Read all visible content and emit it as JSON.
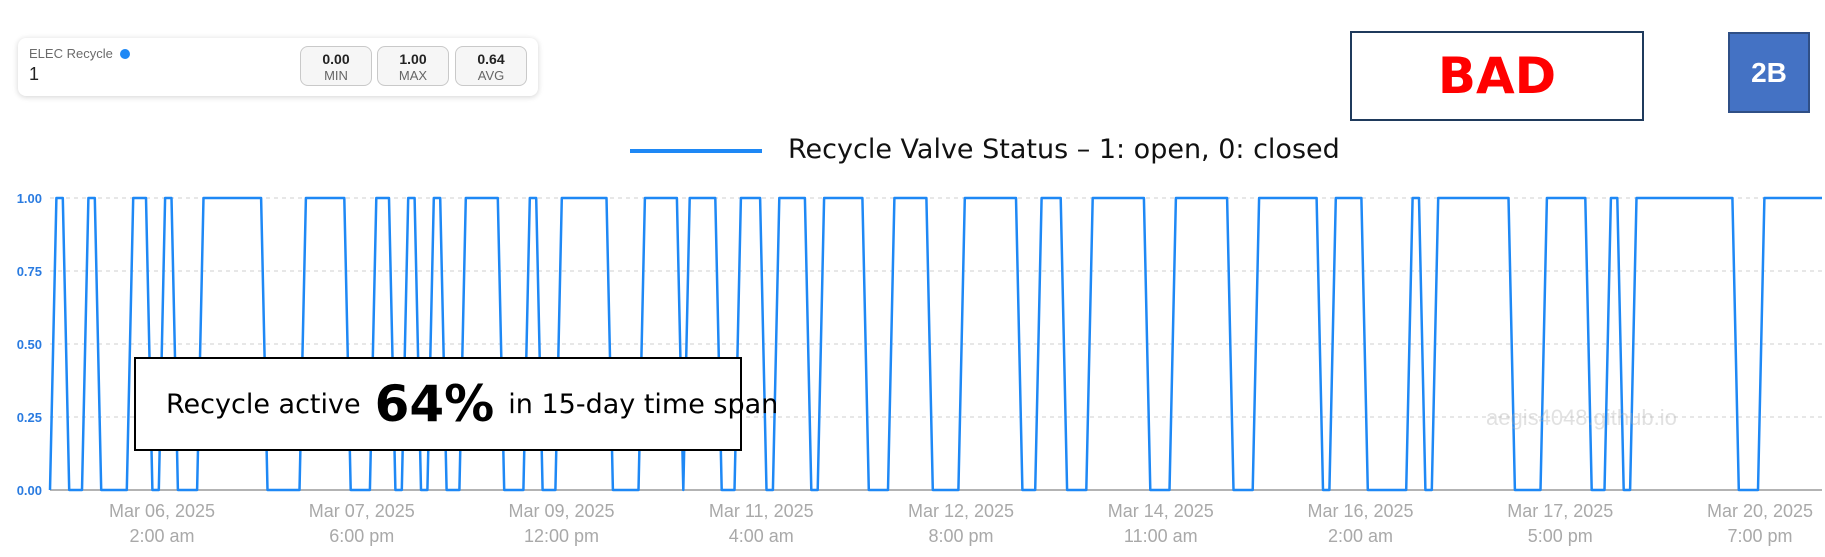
{
  "stats": {
    "title": "ELEC Recycle",
    "current": "1",
    "min_value": "0.00",
    "min_label": "MIN",
    "max_value": "1.00",
    "max_label": "MAX",
    "avg_value": "0.64",
    "avg_label": "AVG",
    "dot_color": "#1e88f5"
  },
  "badge": {
    "text": "BAD",
    "color": "#ff0000"
  },
  "code_box": {
    "text": "2B"
  },
  "legend": {
    "label": "Recycle Valve Status – 1: open, 0: closed",
    "color": "#1e88f5"
  },
  "annotation": {
    "prefix": "Recycle active",
    "value": "64%",
    "suffix": "in 15-day time span"
  },
  "watermark": "aegis4048.github.io",
  "chart_data": {
    "type": "line",
    "series": [
      {
        "name": "Recycle Valve Status – 1: open, 0: closed",
        "color": "#1e88f5",
        "values": [
          0,
          1,
          1,
          0,
          0,
          0,
          1,
          1,
          0,
          0,
          0,
          0,
          0,
          1,
          1,
          1,
          0,
          0,
          1,
          1,
          0,
          0,
          0,
          0,
          1,
          1,
          1,
          1,
          1,
          1,
          1,
          1,
          1,
          1,
          0,
          0,
          0,
          0,
          0,
          0,
          1,
          1,
          1,
          1,
          1,
          1,
          1,
          0,
          0,
          0,
          0,
          1,
          1,
          1,
          0,
          0,
          1,
          1,
          0,
          0,
          1,
          1,
          0,
          0,
          0,
          1,
          1,
          1,
          1,
          1,
          1,
          0,
          0,
          0,
          0,
          1,
          1,
          0,
          0,
          0,
          1,
          1,
          1,
          1,
          1,
          1,
          1,
          1,
          0,
          0,
          0,
          0,
          0,
          1,
          1,
          1,
          1,
          1,
          1,
          0,
          1,
          1,
          1,
          1,
          1,
          0,
          0,
          0,
          1,
          1,
          1,
          1,
          0,
          0,
          1,
          1,
          1,
          1,
          1,
          0,
          0,
          1,
          1,
          1,
          1,
          1,
          1,
          1,
          0,
          0,
          0,
          0,
          1,
          1,
          1,
          1,
          1,
          1,
          0,
          0,
          0,
          0,
          0,
          1,
          1,
          1,
          1,
          1,
          1,
          1,
          1,
          1,
          0,
          0,
          0,
          1,
          1,
          1,
          1,
          0,
          0,
          0,
          0,
          1,
          1,
          1,
          1,
          1,
          1,
          1,
          1,
          1,
          0,
          0,
          0,
          0,
          1,
          1,
          1,
          1,
          1,
          1,
          1,
          1,
          1,
          0,
          0,
          0,
          0,
          1,
          1,
          1,
          1,
          1,
          1,
          1,
          1,
          1,
          1,
          0,
          0,
          1,
          1,
          1,
          1,
          1,
          0,
          0,
          0,
          0,
          0,
          0,
          0,
          1,
          1,
          0,
          0,
          1,
          1,
          1,
          1,
          1,
          1,
          1,
          1,
          1,
          1,
          1,
          1,
          0,
          0,
          0,
          0,
          0,
          1,
          1,
          1,
          1,
          1,
          1,
          1,
          0,
          0,
          0,
          1,
          1,
          0,
          0,
          1,
          1,
          1,
          1,
          1,
          1,
          1,
          1,
          1,
          1,
          1,
          1,
          1,
          1,
          1,
          1,
          0,
          0,
          0,
          0,
          1,
          1,
          1,
          1,
          1,
          1,
          1,
          1,
          1,
          1
        ]
      }
    ],
    "ylim": [
      0,
      1
    ],
    "yticks": [
      "1.00",
      "0.75",
      "0.50",
      "0.25",
      "0.00"
    ],
    "xticks": [
      {
        "date": "Mar 06, 2025",
        "time": "2:00 am"
      },
      {
        "date": "Mar 07, 2025",
        "time": "6:00 pm"
      },
      {
        "date": "Mar 09, 2025",
        "time": "12:00 pm"
      },
      {
        "date": "Mar 11, 2025",
        "time": "4:00 am"
      },
      {
        "date": "Mar 12, 2025",
        "time": "8:00 pm"
      },
      {
        "date": "Mar 14, 2025",
        "time": "11:00 am"
      },
      {
        "date": "Mar 16, 2025",
        "time": "2:00 am"
      },
      {
        "date": "Mar 17, 2025",
        "time": "5:00 pm"
      },
      {
        "date": "Mar 20, 2025",
        "time": "7:00 pm"
      }
    ],
    "grid": true,
    "legend_position": "top-center"
  }
}
